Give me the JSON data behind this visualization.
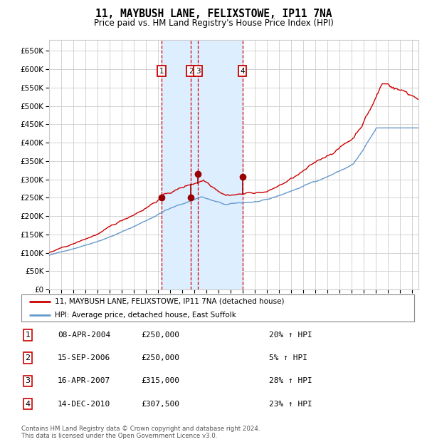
{
  "title": "11, MAYBUSH LANE, FELIXSTOWE, IP11 7NA",
  "subtitle": "Price paid vs. HM Land Registry's House Price Index (HPI)",
  "legend_label_red": "11, MAYBUSH LANE, FELIXSTOWE, IP11 7NA (detached house)",
  "legend_label_blue": "HPI: Average price, detached house, East Suffolk",
  "footer1": "Contains HM Land Registry data © Crown copyright and database right 2024.",
  "footer2": "This data is licensed under the Open Government Licence v3.0.",
  "transactions": [
    {
      "num": 1,
      "date": "08-APR-2004",
      "price": 250000,
      "pct": "20%",
      "dir": "↑"
    },
    {
      "num": 2,
      "date": "15-SEP-2006",
      "price": 250000,
      "pct": "5%",
      "dir": "↑"
    },
    {
      "num": 3,
      "date": "16-APR-2007",
      "price": 315000,
      "pct": "28%",
      "dir": "↑"
    },
    {
      "num": 4,
      "date": "14-DEC-2010",
      "price": 307500,
      "pct": "23%",
      "dir": "↑"
    }
  ],
  "transaction_dates_decimal": [
    2004.27,
    2006.71,
    2007.29,
    2010.96
  ],
  "transaction_prices": [
    250000,
    250000,
    315000,
    307500
  ],
  "ylim": [
    0,
    680000
  ],
  "yticks": [
    0,
    50000,
    100000,
    150000,
    200000,
    250000,
    300000,
    350000,
    400000,
    450000,
    500000,
    550000,
    600000,
    650000
  ],
  "xlim_start": 1995.0,
  "xlim_end": 2025.5,
  "background_color": "#ffffff",
  "plot_bg_color": "#ffffff",
  "grid_color": "#cccccc",
  "red_line_color": "#cc0000",
  "blue_line_color": "#6699cc",
  "highlight_bg_color": "#ddeeff",
  "dashed_vline_color": "#cc0000",
  "transaction_marker_color": "#990000",
  "box_edge_color": "#cc0000"
}
